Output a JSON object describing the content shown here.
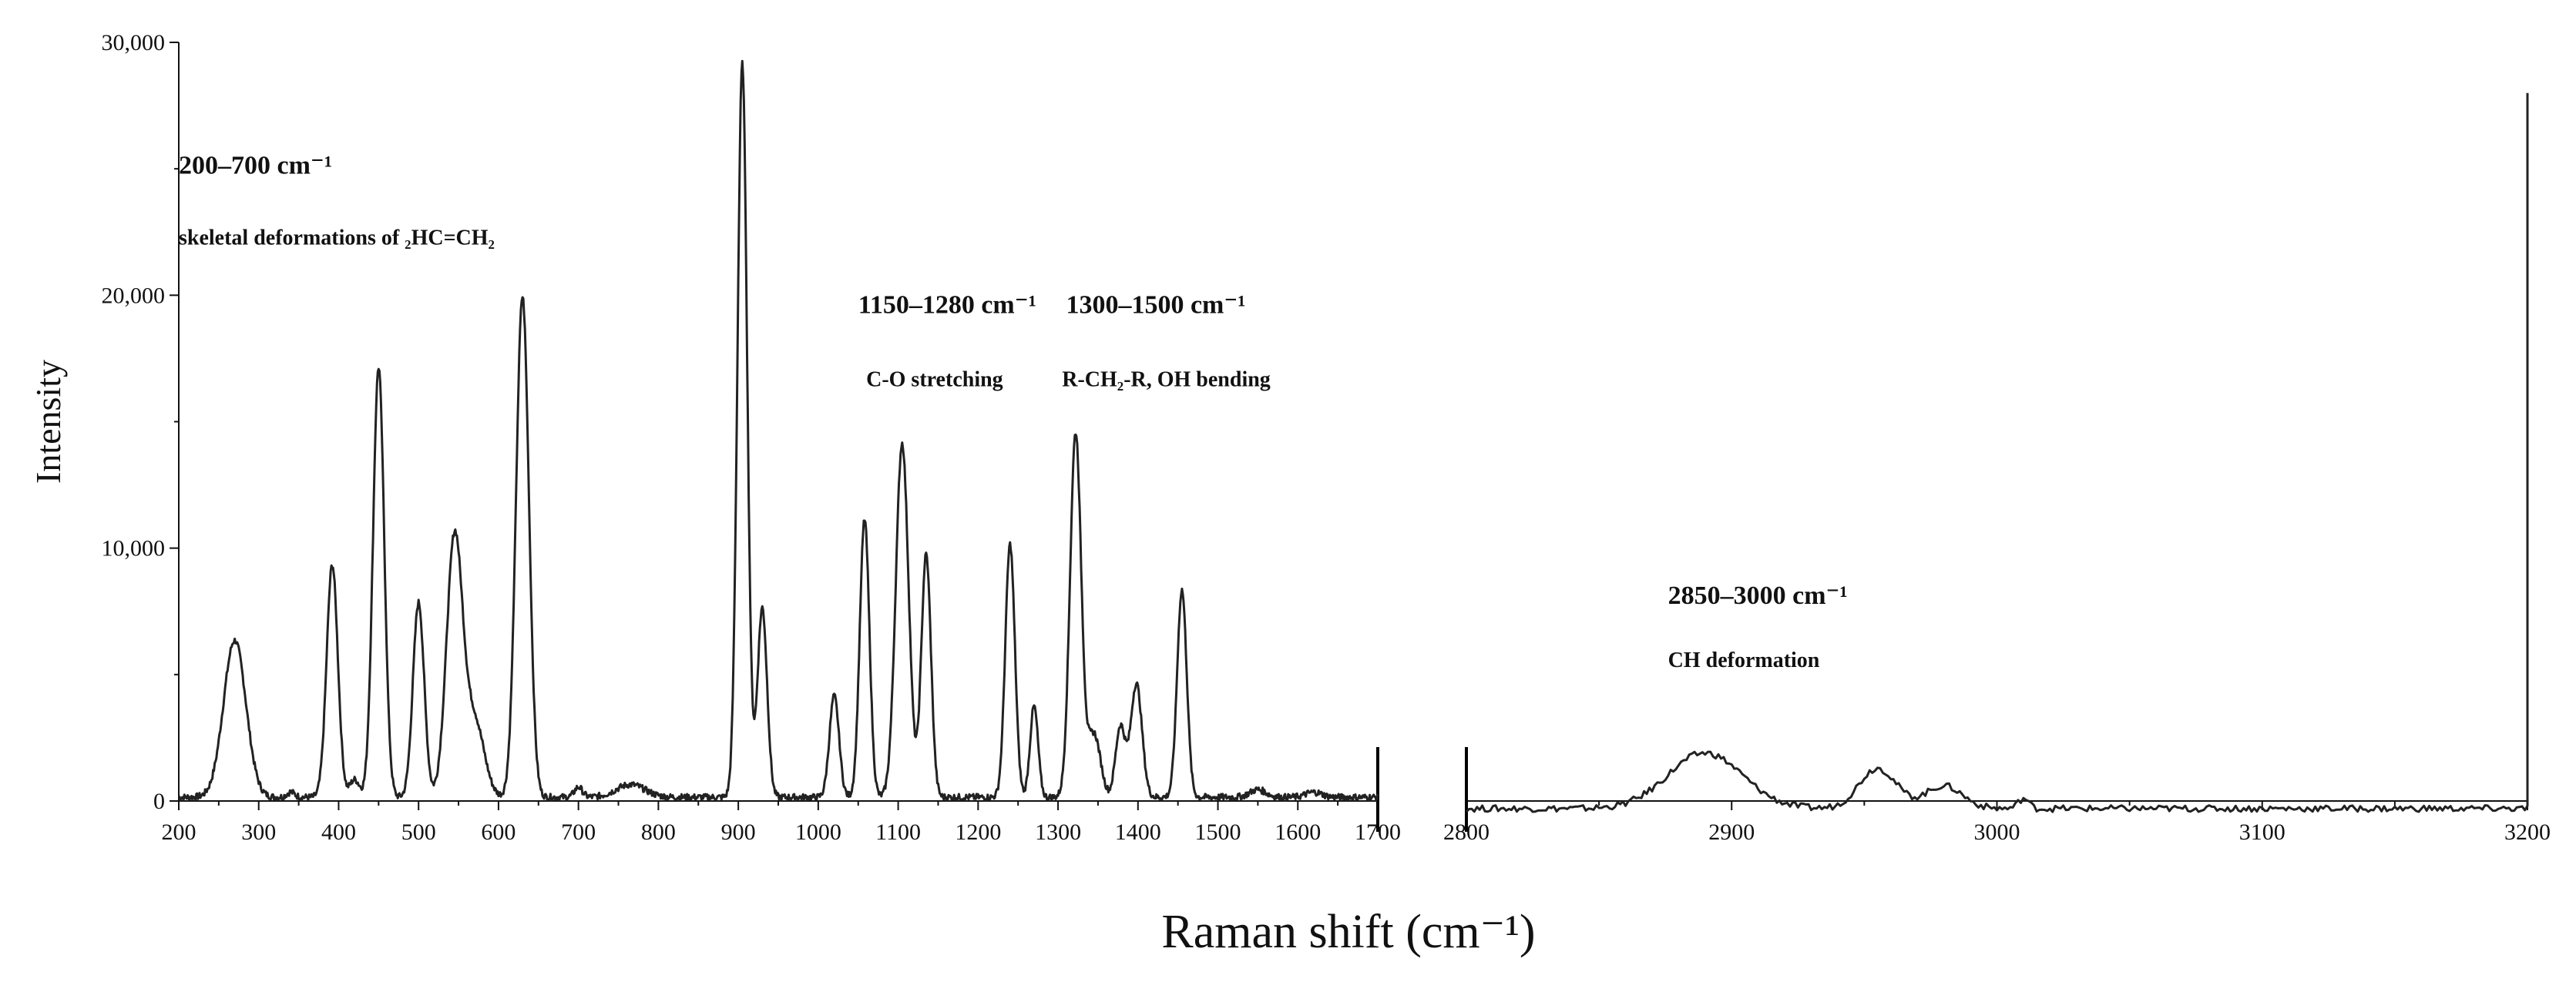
{
  "chart_data": {
    "type": "line",
    "ylabel": "Intensity",
    "xlabel": "Raman shift (cm⁻¹)",
    "ylim": [
      0,
      30000
    ],
    "ytick_labels": [
      "0",
      "10,000",
      "20,000",
      "30,000"
    ],
    "ytick_values": [
      0,
      10000,
      20000,
      30000
    ],
    "grid": false,
    "legend": "none",
    "line_color": "#222222",
    "panels": [
      {
        "name": "left",
        "xlim": [
          200,
          1700
        ],
        "xtick_values": [
          200,
          300,
          400,
          500,
          600,
          700,
          800,
          900,
          1000,
          1100,
          1200,
          1300,
          1400,
          1500,
          1600,
          1700
        ],
        "xtick_labels": [
          "200",
          "300",
          "400",
          "500",
          "600",
          "700",
          "800",
          "900",
          "1000",
          "1100",
          "1200",
          "1300",
          "1400",
          "1500",
          "1600",
          "1700"
        ],
        "baseline": 150,
        "peaks": [
          {
            "x": 270,
            "y": 6200,
            "w": 14
          },
          {
            "x": 340,
            "y": 200,
            "w": 5
          },
          {
            "x": 392,
            "y": 9200,
            "w": 7
          },
          {
            "x": 420,
            "y": 700,
            "w": 6
          },
          {
            "x": 450,
            "y": 17000,
            "w": 7
          },
          {
            "x": 500,
            "y": 7700,
            "w": 7
          },
          {
            "x": 545,
            "y": 10200,
            "w": 10
          },
          {
            "x": 570,
            "y": 3000,
            "w": 12
          },
          {
            "x": 630,
            "y": 19800,
            "w": 8
          },
          {
            "x": 700,
            "y": 400,
            "w": 5
          },
          {
            "x": 765,
            "y": 500,
            "w": 18
          },
          {
            "x": 905,
            "y": 29000,
            "w": 6
          },
          {
            "x": 930,
            "y": 7500,
            "w": 6
          },
          {
            "x": 1020,
            "y": 4000,
            "w": 6
          },
          {
            "x": 1058,
            "y": 11000,
            "w": 6
          },
          {
            "x": 1105,
            "y": 14000,
            "w": 8
          },
          {
            "x": 1135,
            "y": 9600,
            "w": 6
          },
          {
            "x": 1240,
            "y": 10000,
            "w": 6
          },
          {
            "x": 1270,
            "y": 3600,
            "w": 5
          },
          {
            "x": 1322,
            "y": 14400,
            "w": 7
          },
          {
            "x": 1345,
            "y": 2500,
            "w": 8
          },
          {
            "x": 1378,
            "y": 2800,
            "w": 6
          },
          {
            "x": 1398,
            "y": 4500,
            "w": 7
          },
          {
            "x": 1455,
            "y": 8200,
            "w": 6
          },
          {
            "x": 1550,
            "y": 300,
            "w": 10
          },
          {
            "x": 1620,
            "y": 200,
            "w": 10
          }
        ],
        "annotations": [
          {
            "text": "200–700 cm⁻¹",
            "x": 200,
            "y": 24800,
            "class": "range"
          },
          {
            "text": "skeletal deformations of ₂HC=CH₂",
            "x": 200,
            "y": 22000,
            "class": "desc"
          },
          {
            "text": "1150–1280 cm⁻¹",
            "x": 1050,
            "y": 19300,
            "class": "range"
          },
          {
            "text": "C-O stretching",
            "x": 1060,
            "y": 16400,
            "class": "desc"
          },
          {
            "text": "1300–1500 cm⁻¹",
            "x": 1310,
            "y": 19300,
            "class": "range"
          },
          {
            "text": "R-CH₂-R, OH bending",
            "x": 1305,
            "y": 16400,
            "class": "desc"
          }
        ]
      },
      {
        "name": "right",
        "xlim": [
          2800,
          3200
        ],
        "xtick_values": [
          2800,
          2900,
          3000,
          3100,
          3200
        ],
        "xtick_labels": [
          "2800",
          "2900",
          "3000",
          "3100",
          "3200"
        ],
        "baseline": -300,
        "peaks": [
          {
            "x": 2890,
            "y": 2200,
            "w": 14
          },
          {
            "x": 2955,
            "y": 1600,
            "w": 7
          },
          {
            "x": 2980,
            "y": 900,
            "w": 7
          },
          {
            "x": 3010,
            "y": 400,
            "w": 2
          }
        ],
        "end_spike": 28000,
        "annotations": [
          {
            "text": "2850–3000 cm⁻¹",
            "x": 2876,
            "y": 7800,
            "class": "range"
          },
          {
            "text": "CH deformation",
            "x": 2876,
            "y": 5300,
            "class": "desc"
          }
        ]
      }
    ]
  }
}
